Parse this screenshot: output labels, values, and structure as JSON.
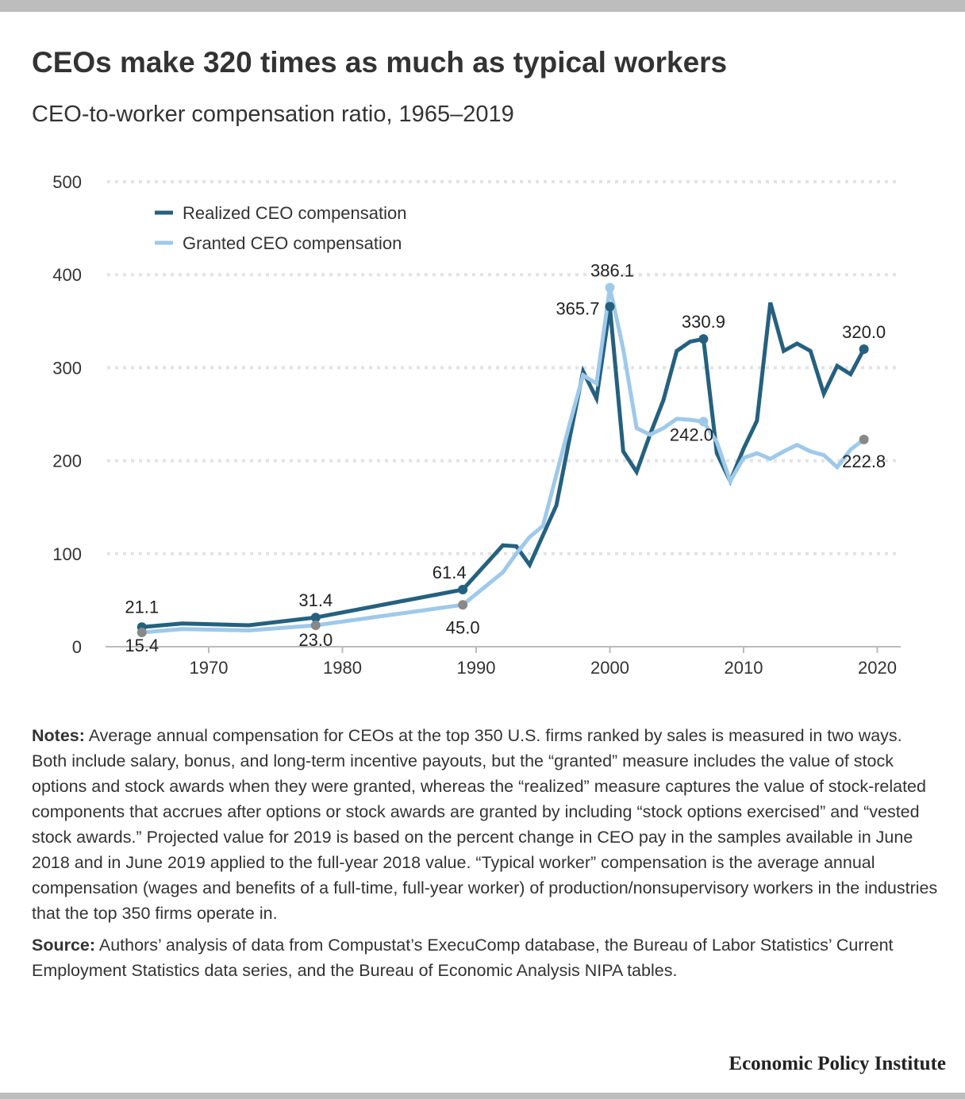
{
  "title": "CEOs make 320 times as much as typical workers",
  "subtitle": "CEO-to-worker compensation ratio, 1965–2019",
  "notes_label": "Notes:",
  "notes_text": "Average annual compensation for CEOs at the top 350 U.S. firms ranked by sales is measured in two ways. Both include salary, bonus, and long-term incentive payouts, but the “granted” measure includes the value of stock options and stock awards when they were granted, whereas the “realized” measure captures the value of stock-related components that accrues after options or stock awards are granted by including “stock options exercised” and “vested stock awards.” Projected value for 2019 is based on the percent change in CEO pay in the samples available in June 2018 and in June 2019 applied to the full-year 2018 value. “Typical worker” compensation is the average annual compensation (wages and benefits of a full-time, full-year worker) of production/nonsupervisory workers in the industries that the top 350 firms operate in.",
  "source_label": "Source:",
  "source_text": "Authors’ analysis of data from Compustat’s ExecuComp database, the Bureau of Labor Statistics’ Current Employment Statistics data series, and the Bureau of Economic Analysis NIPA tables.",
  "brand": "Economic Policy Institute",
  "chart_data": {
    "type": "line",
    "title": "CEOs make 320 times as much as typical workers",
    "subtitle": "CEO-to-worker compensation ratio, 1965–2019",
    "xlabel": "",
    "ylabel": "",
    "xlim": [
      1962,
      2022
    ],
    "ylim": [
      0,
      500
    ],
    "xticks": [
      1970,
      1980,
      1990,
      2000,
      2010,
      2020
    ],
    "yticks": [
      0,
      100,
      200,
      300,
      400,
      500
    ],
    "grid": "horizontal dotted",
    "legend": "top-left",
    "x": [
      1965,
      1968,
      1973,
      1978,
      1989,
      1992,
      1993,
      1994,
      1995,
      1996,
      1997,
      1998,
      1999,
      2000,
      2001,
      2002,
      2003,
      2004,
      2005,
      2006,
      2007,
      2008,
      2009,
      2010,
      2011,
      2012,
      2013,
      2014,
      2015,
      2016,
      2017,
      2018,
      2019
    ],
    "series": [
      {
        "name": "Realized CEO compensation",
        "color": "#25617f",
        "values": [
          21.1,
          25,
          23,
          31.4,
          61.4,
          109,
          108,
          88,
          120,
          152,
          225,
          296,
          267,
          365.7,
          210,
          188,
          228,
          265,
          318,
          328,
          330.9,
          208,
          178,
          213,
          243,
          370,
          318,
          326,
          318,
          272,
          302,
          293,
          320.0
        ]
      },
      {
        "name": "Granted CEO compensation",
        "color": "#9ec9ea",
        "values": [
          15.4,
          19,
          17.5,
          23.0,
          45.0,
          80,
          100,
          118,
          130,
          185,
          240,
          292,
          283,
          386.1,
          320,
          235,
          228,
          235,
          245,
          244,
          242.0,
          220,
          178,
          203,
          208,
          202,
          210,
          217,
          210,
          206,
          193,
          212,
          222.8
        ]
      }
    ],
    "annotations": [
      {
        "series": 0,
        "x": 1965,
        "label": "21.1"
      },
      {
        "series": 0,
        "x": 1978,
        "label": "31.4"
      },
      {
        "series": 0,
        "x": 1989,
        "label": "61.4"
      },
      {
        "series": 0,
        "x": 2000,
        "label": "365.7"
      },
      {
        "series": 0,
        "x": 2007,
        "label": "330.9"
      },
      {
        "series": 0,
        "x": 2019,
        "label": "320.0"
      },
      {
        "series": 1,
        "x": 1965,
        "label": "15.4"
      },
      {
        "series": 1,
        "x": 1978,
        "label": "23.0"
      },
      {
        "series": 1,
        "x": 1989,
        "label": "45.0"
      },
      {
        "series": 1,
        "x": 2000,
        "label": "386.1"
      },
      {
        "series": 1,
        "x": 2007,
        "label": "242.0"
      },
      {
        "series": 1,
        "x": 2019,
        "label": "222.8"
      }
    ]
  }
}
